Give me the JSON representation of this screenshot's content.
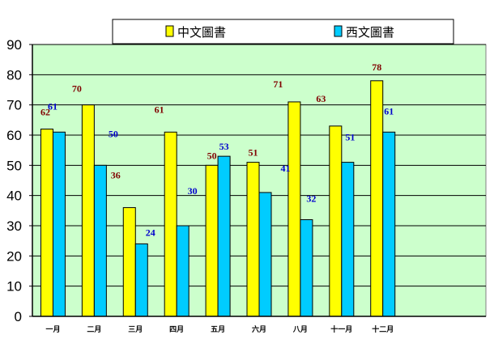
{
  "chart_data": {
    "type": "bar",
    "categories": [
      "一月",
      "二月",
      "三月",
      "四月",
      "五月",
      "六月",
      "八月",
      "十一月",
      "十二月"
    ],
    "series": [
      {
        "name": "中文圖書",
        "values": [
          62,
          70,
          36,
          61,
          50,
          51,
          71,
          63,
          78
        ],
        "color": "#ffff00",
        "label_color": "#800000"
      },
      {
        "name": "西文圖書",
        "values": [
          61,
          50,
          24,
          30,
          53,
          41,
          32,
          51,
          61
        ],
        "color": "#00ccff",
        "label_color": "#0000cc"
      }
    ],
    "ylim": [
      0,
      90
    ],
    "yticks": [
      0,
      10,
      20,
      30,
      40,
      50,
      60,
      70,
      80,
      90
    ],
    "grid": true,
    "legend_position": "top",
    "plot_background": "#ccffcc"
  }
}
